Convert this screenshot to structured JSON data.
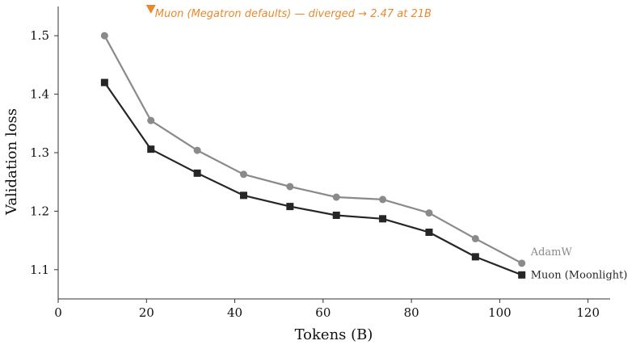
{
  "chart_data": {
    "type": "line",
    "xlabel": "Tokens (B)",
    "ylabel": "Validation loss",
    "xlim": [
      0,
      125
    ],
    "ylim": [
      1.05,
      1.55
    ],
    "xticks": [
      0,
      20,
      40,
      60,
      80,
      100,
      120
    ],
    "yticks": [
      1.1,
      1.2,
      1.3,
      1.4,
      1.5
    ],
    "ytick_labels": [
      "1.1",
      "1.2",
      "1.3",
      "1.4",
      "1.5"
    ],
    "grid": false,
    "series": [
      {
        "name": "AdamW",
        "color": "#8a8a8a",
        "marker": "circle",
        "x": [
          10.5,
          21,
          31.5,
          42,
          52.5,
          63,
          73.5,
          84,
          94.5,
          105
        ],
        "y": [
          1.5,
          1.355,
          1.304,
          1.263,
          1.242,
          1.224,
          1.22,
          1.197,
          1.153,
          1.111
        ]
      },
      {
        "name": "Muon (Moonlight)",
        "color": "#262626",
        "marker": "square",
        "x": [
          10.5,
          21,
          31.5,
          42,
          52.5,
          63,
          73.5,
          84,
          94.5,
          105
        ],
        "y": [
          1.42,
          1.306,
          1.265,
          1.227,
          1.208,
          1.193,
          1.187,
          1.164,
          1.122,
          1.091
        ]
      }
    ],
    "annotation": {
      "text": "Muon (Megatron defaults) — diverged → 2.47 at 21B",
      "x": 21,
      "color": "#e8892c",
      "marker": "down-triangle"
    }
  }
}
